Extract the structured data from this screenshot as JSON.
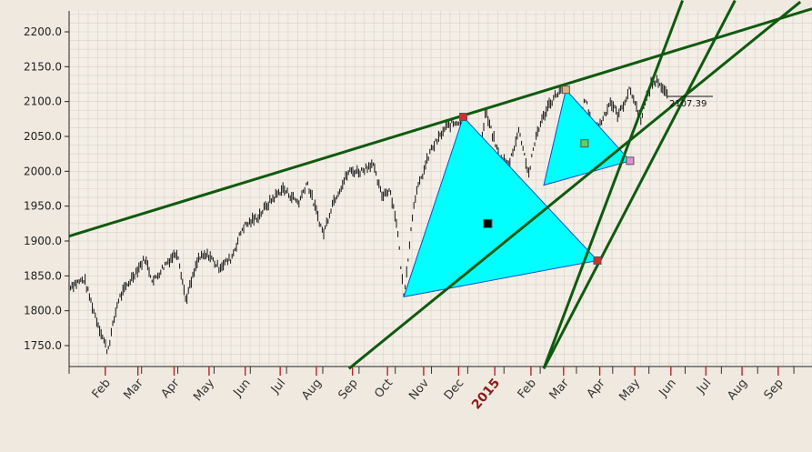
{
  "chart_data": {
    "type": "line",
    "style": "ohlc-bars",
    "ylim": [
      1720,
      2230
    ],
    "y_ticks": [
      "2200.0",
      "2150.0",
      "2100.0",
      "2050.0",
      "2000.0",
      "1950.0",
      "1900.0",
      "1850.0",
      "1800.0",
      "1750.0"
    ],
    "y_tick_values": [
      2200,
      2150,
      2100,
      2050,
      2000,
      1950,
      1900,
      1850,
      1800,
      1750
    ],
    "x_ticks": [
      {
        "label": "Feb",
        "date": "2014-02-01"
      },
      {
        "label": "Mar",
        "date": "2014-03-01"
      },
      {
        "label": "Apr",
        "date": "2014-04-01"
      },
      {
        "label": "May",
        "date": "2014-05-01"
      },
      {
        "label": "Jun",
        "date": "2014-06-01"
      },
      {
        "label": "Jul",
        "date": "2014-07-01"
      },
      {
        "label": "Aug",
        "date": "2014-08-01"
      },
      {
        "label": "Sep",
        "date": "2014-09-01"
      },
      {
        "label": "Oct",
        "date": "2014-10-01"
      },
      {
        "label": "Nov",
        "date": "2014-11-01"
      },
      {
        "label": "Dec",
        "date": "2014-12-01"
      },
      {
        "label": "2015",
        "date": "2015-01-01",
        "year": true
      },
      {
        "label": "Feb",
        "date": "2015-02-01"
      },
      {
        "label": "Mar",
        "date": "2015-03-01"
      },
      {
        "label": "Apr",
        "date": "2015-04-01"
      },
      {
        "label": "May",
        "date": "2015-05-01"
      },
      {
        "label": "Jun",
        "date": "2015-06-01"
      },
      {
        "label": "Jul",
        "date": "2015-07-01"
      },
      {
        "label": "Aug",
        "date": "2015-08-01"
      },
      {
        "label": "Sep",
        "date": "2015-09-01"
      }
    ],
    "xlim": [
      "2014-01-01",
      "2015-09-30"
    ],
    "last_value_label": "2107.39",
    "price_path": [
      [
        "2014-01-01",
        1835
      ],
      [
        "2014-01-14",
        1845
      ],
      [
        "2014-01-24",
        1790
      ],
      [
        "2014-02-03",
        1742
      ],
      [
        "2014-02-12",
        1815
      ],
      [
        "2014-02-24",
        1848
      ],
      [
        "2014-03-07",
        1875
      ],
      [
        "2014-03-14",
        1842
      ],
      [
        "2014-03-25",
        1868
      ],
      [
        "2014-04-04",
        1885
      ],
      [
        "2014-04-11",
        1815
      ],
      [
        "2014-04-22",
        1875
      ],
      [
        "2014-05-01",
        1880
      ],
      [
        "2014-05-09",
        1862
      ],
      [
        "2014-05-20",
        1875
      ],
      [
        "2014-05-30",
        1920
      ],
      [
        "2014-06-12",
        1935
      ],
      [
        "2014-06-23",
        1958
      ],
      [
        "2014-07-03",
        1975
      ],
      [
        "2014-07-17",
        1955
      ],
      [
        "2014-07-24",
        1985
      ],
      [
        "2014-08-07",
        1910
      ],
      [
        "2014-08-15",
        1955
      ],
      [
        "2014-08-29",
        2000
      ],
      [
        "2014-09-08",
        2000
      ],
      [
        "2014-09-18",
        2012
      ],
      [
        "2014-09-26",
        1965
      ],
      [
        "2014-10-03",
        1975
      ],
      [
        "2014-10-09",
        1925
      ],
      [
        "2014-10-15",
        1820
      ],
      [
        "2014-10-24",
        1960
      ],
      [
        "2014-11-07",
        2030
      ],
      [
        "2014-11-21",
        2065
      ],
      [
        "2014-12-02",
        2072
      ],
      [
        "2014-12-05",
        2078
      ],
      [
        "2014-12-10",
        2030
      ],
      [
        "2014-12-16",
        1975
      ],
      [
        "2014-12-24",
        2085
      ],
      [
        "2015-01-05",
        2020
      ],
      [
        "2015-01-13",
        2010
      ],
      [
        "2015-01-22",
        2060
      ],
      [
        "2015-01-30",
        1995
      ],
      [
        "2015-02-06",
        2055
      ],
      [
        "2015-02-16",
        2095
      ],
      [
        "2015-02-25",
        2115
      ],
      [
        "2015-03-03",
        2117
      ],
      [
        "2015-03-10",
        2045
      ],
      [
        "2015-03-20",
        2105
      ],
      [
        "2015-03-26",
        2055
      ],
      [
        "2015-04-02",
        2070
      ],
      [
        "2015-04-10",
        2100
      ],
      [
        "2015-04-17",
        2080
      ],
      [
        "2015-04-27",
        2118
      ],
      [
        "2015-05-06",
        2075
      ],
      [
        "2015-05-15",
        2125
      ],
      [
        "2015-05-21",
        2130
      ],
      [
        "2015-05-29",
        2107.39
      ]
    ],
    "trendlines": [
      {
        "from": [
          "2014-01-01",
          1907
        ],
        "to": [
          "2015-09-30",
          2233
        ]
      },
      {
        "from": [
          "2014-08-29",
          1717
        ],
        "to": [
          "2015-09-20",
          2243
        ]
      },
      {
        "from": [
          "2015-02-12",
          1717
        ],
        "to": [
          "2015-06-11",
          2245
        ]
      },
      {
        "from": [
          "2015-02-12",
          1717
        ],
        "to": [
          "2015-07-26",
          2245
        ]
      }
    ],
    "triangles": [
      {
        "points": [
          [
            "2014-10-15",
            1820
          ],
          [
            "2014-12-05",
            2078
          ],
          [
            "2015-03-30",
            1872
          ]
        ]
      },
      {
        "points": [
          [
            "2015-02-12",
            1980
          ],
          [
            "2015-03-03",
            2117
          ],
          [
            "2015-04-27",
            2015
          ]
        ]
      }
    ],
    "markers": [
      {
        "date": "2014-12-05",
        "value": 2078,
        "color": "#d03030"
      },
      {
        "date": "2015-03-03",
        "value": 2117,
        "color": "#e0b080"
      },
      {
        "date": "2015-03-30",
        "value": 1872,
        "color": "#d03030"
      },
      {
        "date": "2015-04-27",
        "value": 2015,
        "color": "#e090d0"
      },
      {
        "date": "2015-03-19",
        "value": 2040,
        "color": "#60d060"
      },
      {
        "date": "2014-12-26",
        "value": 1925,
        "color": "#000000"
      }
    ],
    "colors": {
      "background": "#efe9df",
      "grid": "#d9d2c8",
      "bars": "#111111",
      "trendline": "#0f5a0f",
      "triangle_fill": "#00ffff",
      "triangle_stroke": "#1050c0",
      "tick_red": "#c0202a",
      "year_label": "#8b1a1a"
    }
  }
}
